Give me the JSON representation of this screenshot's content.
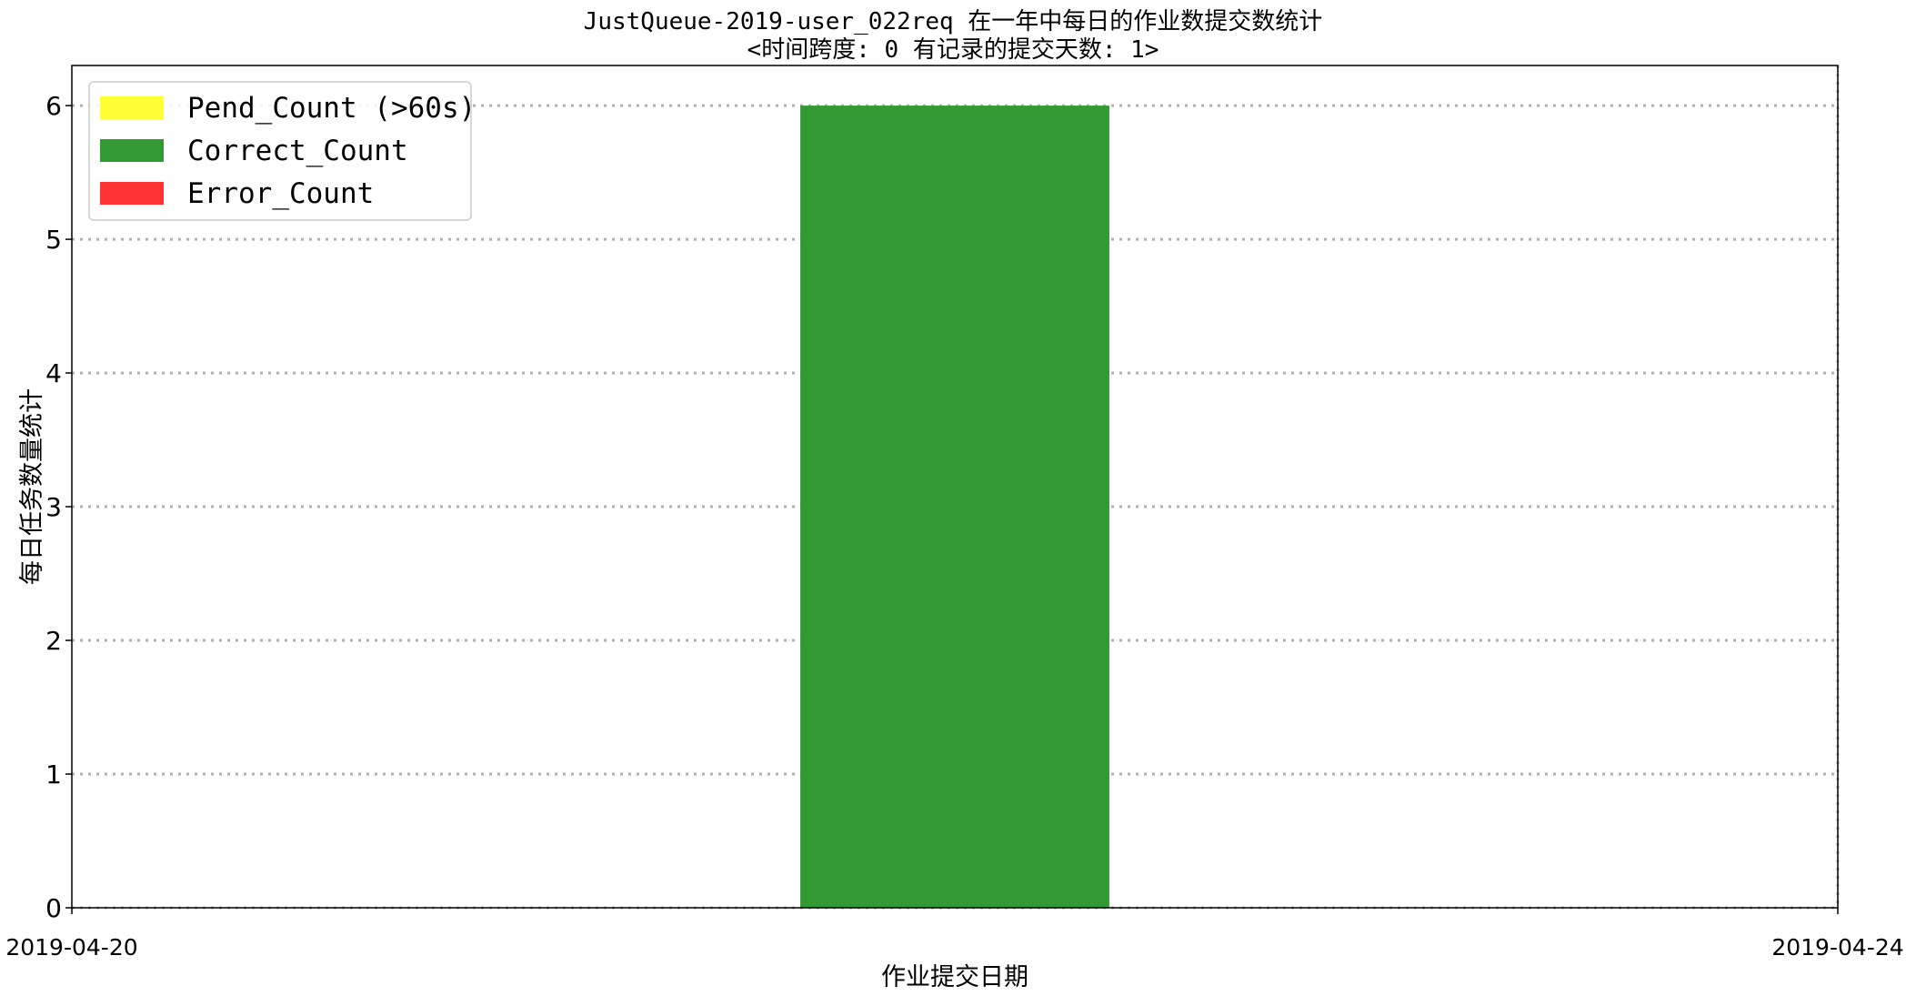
{
  "chart_data": {
    "type": "bar",
    "title": "JustQueue-2019-user_022req 在一年中每日的作业数提交数统计",
    "subtitle": "<时间跨度: 0  有记录的提交天数: 1>",
    "xlabel": "作业提交日期",
    "ylabel": "每日任务数量统计",
    "x_ticks": [
      "2019-04-20",
      "2019-04-24"
    ],
    "xlim": [
      "2019-04-20",
      "2019-04-24"
    ],
    "ylim": [
      0,
      6.3
    ],
    "y_ticks": [
      0,
      1,
      2,
      3,
      4,
      5,
      6
    ],
    "grid": true,
    "legend_position": "top-left",
    "categories": [
      "2019-04-22"
    ],
    "series": [
      {
        "name": "Pend_Count (>60s)",
        "color": "#ffff33",
        "values": [
          0
        ]
      },
      {
        "name": "Correct_Count",
        "color": "#339933",
        "values": [
          6
        ]
      },
      {
        "name": "Error_Count",
        "color": "#ff3333",
        "values": [
          0
        ]
      }
    ]
  }
}
